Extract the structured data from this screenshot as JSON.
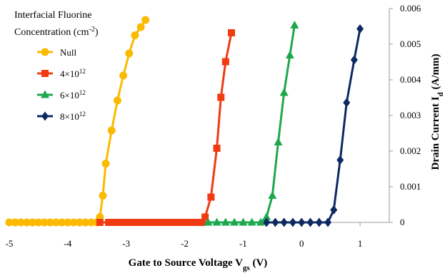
{
  "chart_data": {
    "type": "line",
    "xlabel": "Gate to Source Voltage V",
    "xlabel_sub": "gs",
    "xlabel_unit": " (V)",
    "ylabel": "Drain Current I",
    "ylabel_sub": "d",
    "ylabel_unit": " (A/mm)",
    "xlim": [
      -5,
      1.5
    ],
    "ylim": [
      0,
      0.006
    ],
    "x_ticks": [
      -5,
      -4,
      -3,
      -2,
      -1,
      0,
      1
    ],
    "x_tick_labels": [
      "-5",
      "-4",
      "-3",
      "-2",
      "-1",
      "0",
      "1"
    ],
    "y_ticks": [
      0,
      0.001,
      0.002,
      0.003,
      0.004,
      0.005,
      0.006
    ],
    "y_tick_labels": [
      "0",
      "0.001",
      "0.002",
      "0.003",
      "0.004",
      "0.005",
      "0.006"
    ],
    "y_axis_side": "right",
    "grid": false,
    "legend": {
      "placement": "top-left",
      "title_line1": "Interfacial Fluorine",
      "title_line2": "Concentration (cm",
      "title_sup": "-2",
      "title_end": ")"
    },
    "series": [
      {
        "name": "Null",
        "marker": "circle",
        "color": "#FBB900",
        "x": [
          -5.0,
          -4.9,
          -4.8,
          -4.7,
          -4.6,
          -4.5,
          -4.4,
          -4.3,
          -4.2,
          -4.1,
          -4.0,
          -3.9,
          -3.8,
          -3.7,
          -3.6,
          -3.5,
          -3.45,
          -3.4,
          -3.35,
          -3.25,
          -3.15,
          -3.05,
          -2.95,
          -2.85,
          -2.75,
          -2.67
        ],
        "y": [
          0,
          0,
          0,
          0,
          0,
          0,
          0,
          0,
          0,
          0,
          0,
          0,
          0,
          0,
          0,
          0,
          0.00015,
          0.00075,
          0.00165,
          0.00258,
          0.00342,
          0.00412,
          0.00474,
          0.00525,
          0.00548,
          0.00568
        ]
      },
      {
        "name": "4×10",
        "name_sup": "12",
        "marker": "square",
        "color": "#F03A12",
        "x": [
          -3.45,
          -3.3,
          -3.2,
          -3.1,
          -3.0,
          -2.9,
          -2.8,
          -2.7,
          -2.6,
          -2.5,
          -2.4,
          -2.3,
          -2.2,
          -2.1,
          -2.0,
          -1.9,
          -1.8,
          -1.7,
          -1.65,
          -1.55,
          -1.45,
          -1.38,
          -1.3,
          -1.2
        ],
        "y": [
          0,
          0,
          0,
          0,
          0,
          0,
          0,
          0,
          0,
          0,
          0,
          0,
          0,
          0,
          0,
          0,
          0,
          0,
          0.00015,
          0.00071,
          0.00208,
          0.00351,
          0.00451,
          0.00532
        ]
      },
      {
        "name": "6×10",
        "name_sup": "12",
        "marker": "triangle",
        "color": "#1EA84E",
        "x": [
          -1.6,
          -1.45,
          -1.3,
          -1.15,
          -1.0,
          -0.85,
          -0.7,
          -0.6,
          -0.5,
          -0.4,
          -0.3,
          -0.2,
          -0.12
        ],
        "y": [
          0,
          0,
          0,
          0,
          0,
          0,
          0,
          0.00015,
          0.00075,
          0.00225,
          0.00364,
          0.00469,
          0.00553
        ]
      },
      {
        "name": "8×10",
        "name_sup": "12",
        "marker": "diamond",
        "color": "#0E2A62",
        "x": [
          -0.6,
          -0.45,
          -0.3,
          -0.15,
          0.0,
          0.15,
          0.3,
          0.45,
          0.55,
          0.66,
          0.77,
          0.9,
          1.0
        ],
        "y": [
          0,
          0,
          0,
          0,
          0,
          0,
          0,
          0,
          0.00035,
          0.00175,
          0.00336,
          0.00456,
          0.00543
        ]
      }
    ]
  }
}
